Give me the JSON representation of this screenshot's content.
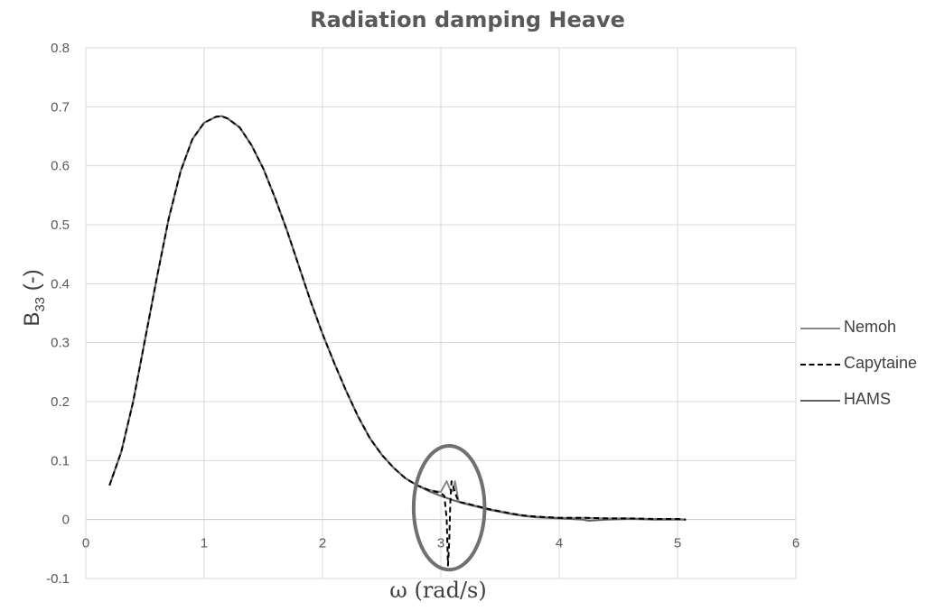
{
  "chart_data": {
    "type": "line",
    "title": "Radiation damping Heave",
    "xlabel": "ω (rad/s)",
    "ylabel": {
      "main": "B",
      "sub": "33",
      "suffix": " (-)"
    },
    "xlim": [
      0,
      6
    ],
    "ylim": [
      -0.1,
      0.8
    ],
    "xticks": [
      "0",
      "1",
      "2",
      "3",
      "4",
      "5",
      "6"
    ],
    "yticks": [
      "-0.1",
      "0",
      "0.1",
      "0.2",
      "0.3",
      "0.4",
      "0.5",
      "0.6",
      "0.7",
      "0.8"
    ],
    "grid": true,
    "legend_position": "right",
    "series": [
      {
        "name": "Nemoh",
        "color": "#888888",
        "style": "solid",
        "x": [
          0.2,
          0.3,
          0.4,
          0.5,
          0.6,
          0.7,
          0.8,
          0.9,
          1.0,
          1.1,
          1.15,
          1.2,
          1.3,
          1.4,
          1.5,
          1.6,
          1.7,
          1.8,
          1.9,
          2.0,
          2.1,
          2.2,
          2.3,
          2.4,
          2.5,
          2.6,
          2.7,
          2.8,
          2.9,
          3.0,
          3.05,
          3.08,
          3.1,
          3.12,
          3.15,
          3.2,
          3.3,
          3.4,
          3.5,
          3.6,
          3.7,
          3.8,
          3.9,
          4.0,
          4.2,
          4.4,
          4.6,
          4.8,
          5.0,
          5.07
        ],
        "y": [
          0.058,
          0.115,
          0.2,
          0.305,
          0.41,
          0.51,
          0.59,
          0.645,
          0.673,
          0.683,
          0.684,
          0.68,
          0.665,
          0.635,
          0.595,
          0.545,
          0.49,
          0.43,
          0.37,
          0.315,
          0.265,
          0.218,
          0.175,
          0.138,
          0.11,
          0.088,
          0.07,
          0.058,
          0.05,
          0.047,
          0.065,
          0.05,
          0.048,
          0.065,
          0.03,
          0.028,
          0.023,
          0.018,
          0.014,
          0.01,
          0.007,
          0.005,
          0.004,
          0.003,
          0.003,
          0.002,
          0.002,
          0.001,
          0.001,
          0.0
        ]
      },
      {
        "name": "Capytaine",
        "color": "#000000",
        "style": "dashed",
        "x": [
          0.2,
          0.3,
          0.4,
          0.5,
          0.6,
          0.7,
          0.8,
          0.9,
          1.0,
          1.1,
          1.15,
          1.2,
          1.3,
          1.4,
          1.5,
          1.6,
          1.7,
          1.8,
          1.9,
          2.0,
          2.1,
          2.2,
          2.3,
          2.4,
          2.5,
          2.6,
          2.7,
          2.8,
          2.9,
          3.0,
          3.03,
          3.05,
          3.06,
          3.07,
          3.08,
          3.09,
          3.1,
          3.12,
          3.15,
          3.2,
          3.3,
          3.4,
          3.5,
          3.6,
          3.7,
          3.8,
          3.9,
          4.0,
          4.2,
          4.4,
          4.6,
          4.8,
          5.0,
          5.07
        ],
        "y": [
          0.058,
          0.115,
          0.2,
          0.305,
          0.41,
          0.51,
          0.59,
          0.645,
          0.673,
          0.683,
          0.684,
          0.68,
          0.665,
          0.635,
          0.595,
          0.545,
          0.49,
          0.43,
          0.37,
          0.315,
          0.265,
          0.218,
          0.175,
          0.138,
          0.11,
          0.088,
          0.07,
          0.058,
          0.05,
          0.045,
          0.04,
          0.0,
          -0.078,
          -0.04,
          0.03,
          0.065,
          0.06,
          0.045,
          0.03,
          0.028,
          0.023,
          0.018,
          0.014,
          0.01,
          0.007,
          0.005,
          0.004,
          0.003,
          0.003,
          0.002,
          0.002,
          0.001,
          0.001,
          0.0
        ]
      },
      {
        "name": "HAMS",
        "color": "#606060",
        "style": "solid",
        "x": [
          0.2,
          0.3,
          0.4,
          0.5,
          0.6,
          0.7,
          0.8,
          0.9,
          1.0,
          1.1,
          1.15,
          1.2,
          1.3,
          1.4,
          1.5,
          1.6,
          1.7,
          1.8,
          1.9,
          2.0,
          2.1,
          2.2,
          2.3,
          2.4,
          2.5,
          2.6,
          2.7,
          2.8,
          2.9,
          3.0,
          3.1,
          3.2,
          3.3,
          3.4,
          3.5,
          3.6,
          3.7,
          3.8,
          3.9,
          4.0,
          4.2,
          4.25,
          4.4,
          4.6,
          4.8,
          5.0,
          5.07
        ],
        "y": [
          0.058,
          0.115,
          0.2,
          0.305,
          0.41,
          0.51,
          0.59,
          0.645,
          0.673,
          0.683,
          0.684,
          0.68,
          0.665,
          0.635,
          0.595,
          0.545,
          0.49,
          0.43,
          0.37,
          0.315,
          0.265,
          0.218,
          0.175,
          0.138,
          0.11,
          0.088,
          0.07,
          0.058,
          0.048,
          0.04,
          0.033,
          0.027,
          0.022,
          0.017,
          0.013,
          0.009,
          0.006,
          0.004,
          0.003,
          0.002,
          0.0,
          -0.002,
          0.0,
          0.001,
          0.0,
          0.0,
          0.0
        ]
      }
    ],
    "annotation": {
      "type": "ellipse",
      "cx": 3.07,
      "cy": 0.02,
      "rx": 0.3,
      "ry": 0.105,
      "color": "#707070"
    }
  }
}
